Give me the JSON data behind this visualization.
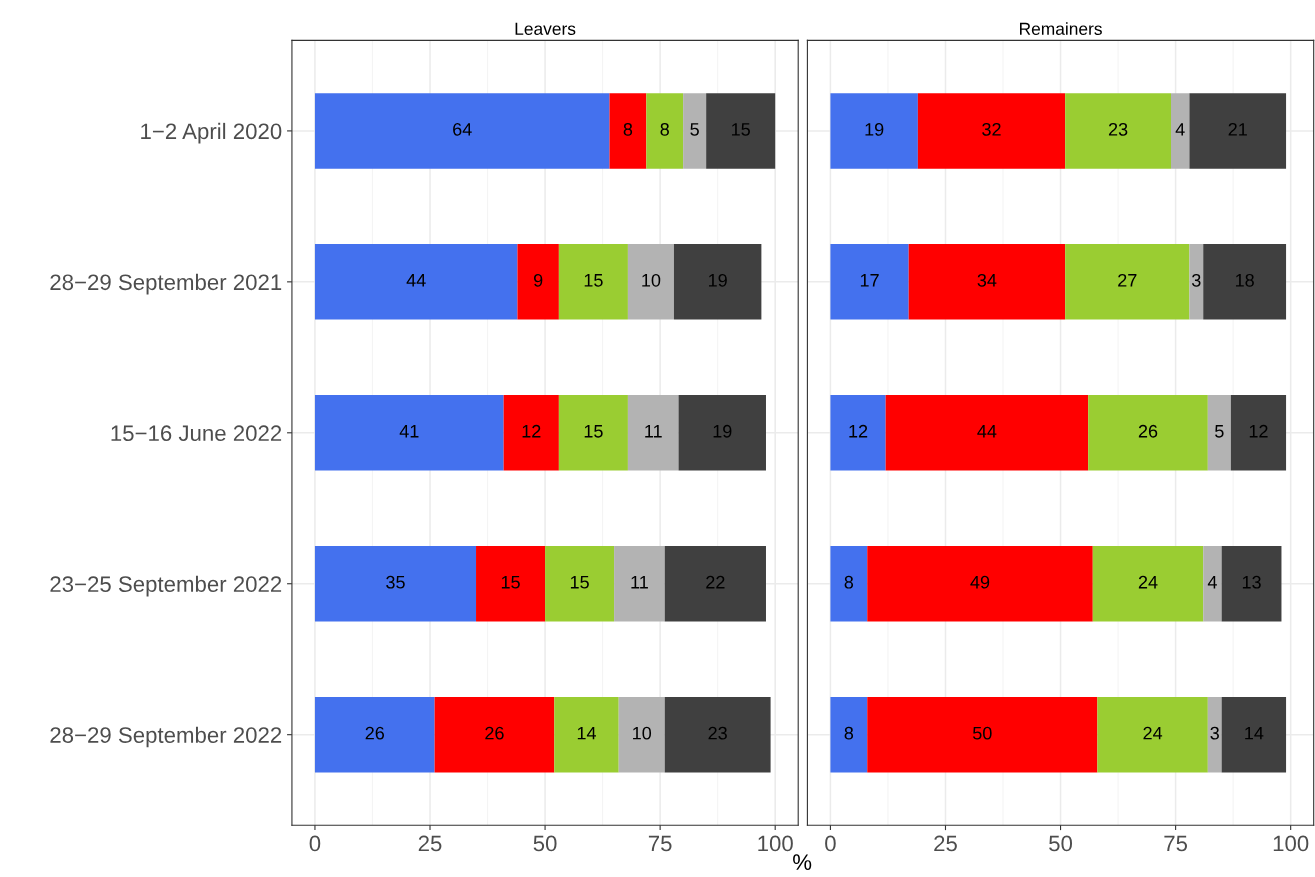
{
  "chart_data": [
    {
      "type": "bar",
      "title": "Leavers",
      "xlabel": "%",
      "orientation": "horizontal",
      "stacked": true,
      "data_labels": true,
      "grid": true,
      "legend": false,
      "categories": [
        "1−2 April 2020",
        "28−29 September 2021",
        "15−16 June 2022",
        "23−25 September 2022",
        "28−29 September 2022"
      ],
      "xlim": [
        -5,
        105
      ],
      "xticks": [
        0,
        25,
        50,
        75,
        100
      ],
      "series": [
        {
          "color": "#4471ee",
          "values": [
            64,
            44,
            41,
            35,
            26
          ]
        },
        {
          "color": "#ff0000",
          "values": [
            8,
            9,
            12,
            15,
            26
          ]
        },
        {
          "color": "#9acd32",
          "values": [
            8,
            15,
            15,
            15,
            14
          ]
        },
        {
          "color": "#b3b3b3",
          "values": [
            5,
            10,
            11,
            11,
            10
          ]
        },
        {
          "color": "#404040",
          "values": [
            15,
            19,
            19,
            22,
            23
          ]
        }
      ]
    },
    {
      "type": "bar",
      "title": "Remainers",
      "orientation": "horizontal",
      "stacked": true,
      "data_labels": true,
      "grid": true,
      "legend": false,
      "tick_labels": "x",
      "xlim": [
        -5,
        105
      ],
      "xticks": [
        0,
        25,
        50,
        75,
        100
      ],
      "series": [
        {
          "color": "#4471ee",
          "values": [
            19,
            17,
            12,
            8,
            8
          ]
        },
        {
          "color": "#ff0000",
          "values": [
            32,
            34,
            44,
            49,
            50
          ]
        },
        {
          "color": "#9acd32",
          "values": [
            23,
            27,
            26,
            24,
            24
          ]
        },
        {
          "color": "#b3b3b3",
          "values": [
            4,
            3,
            5,
            4,
            3
          ]
        },
        {
          "color": "#404040",
          "values": [
            21,
            18,
            12,
            13,
            14
          ]
        }
      ]
    }
  ]
}
